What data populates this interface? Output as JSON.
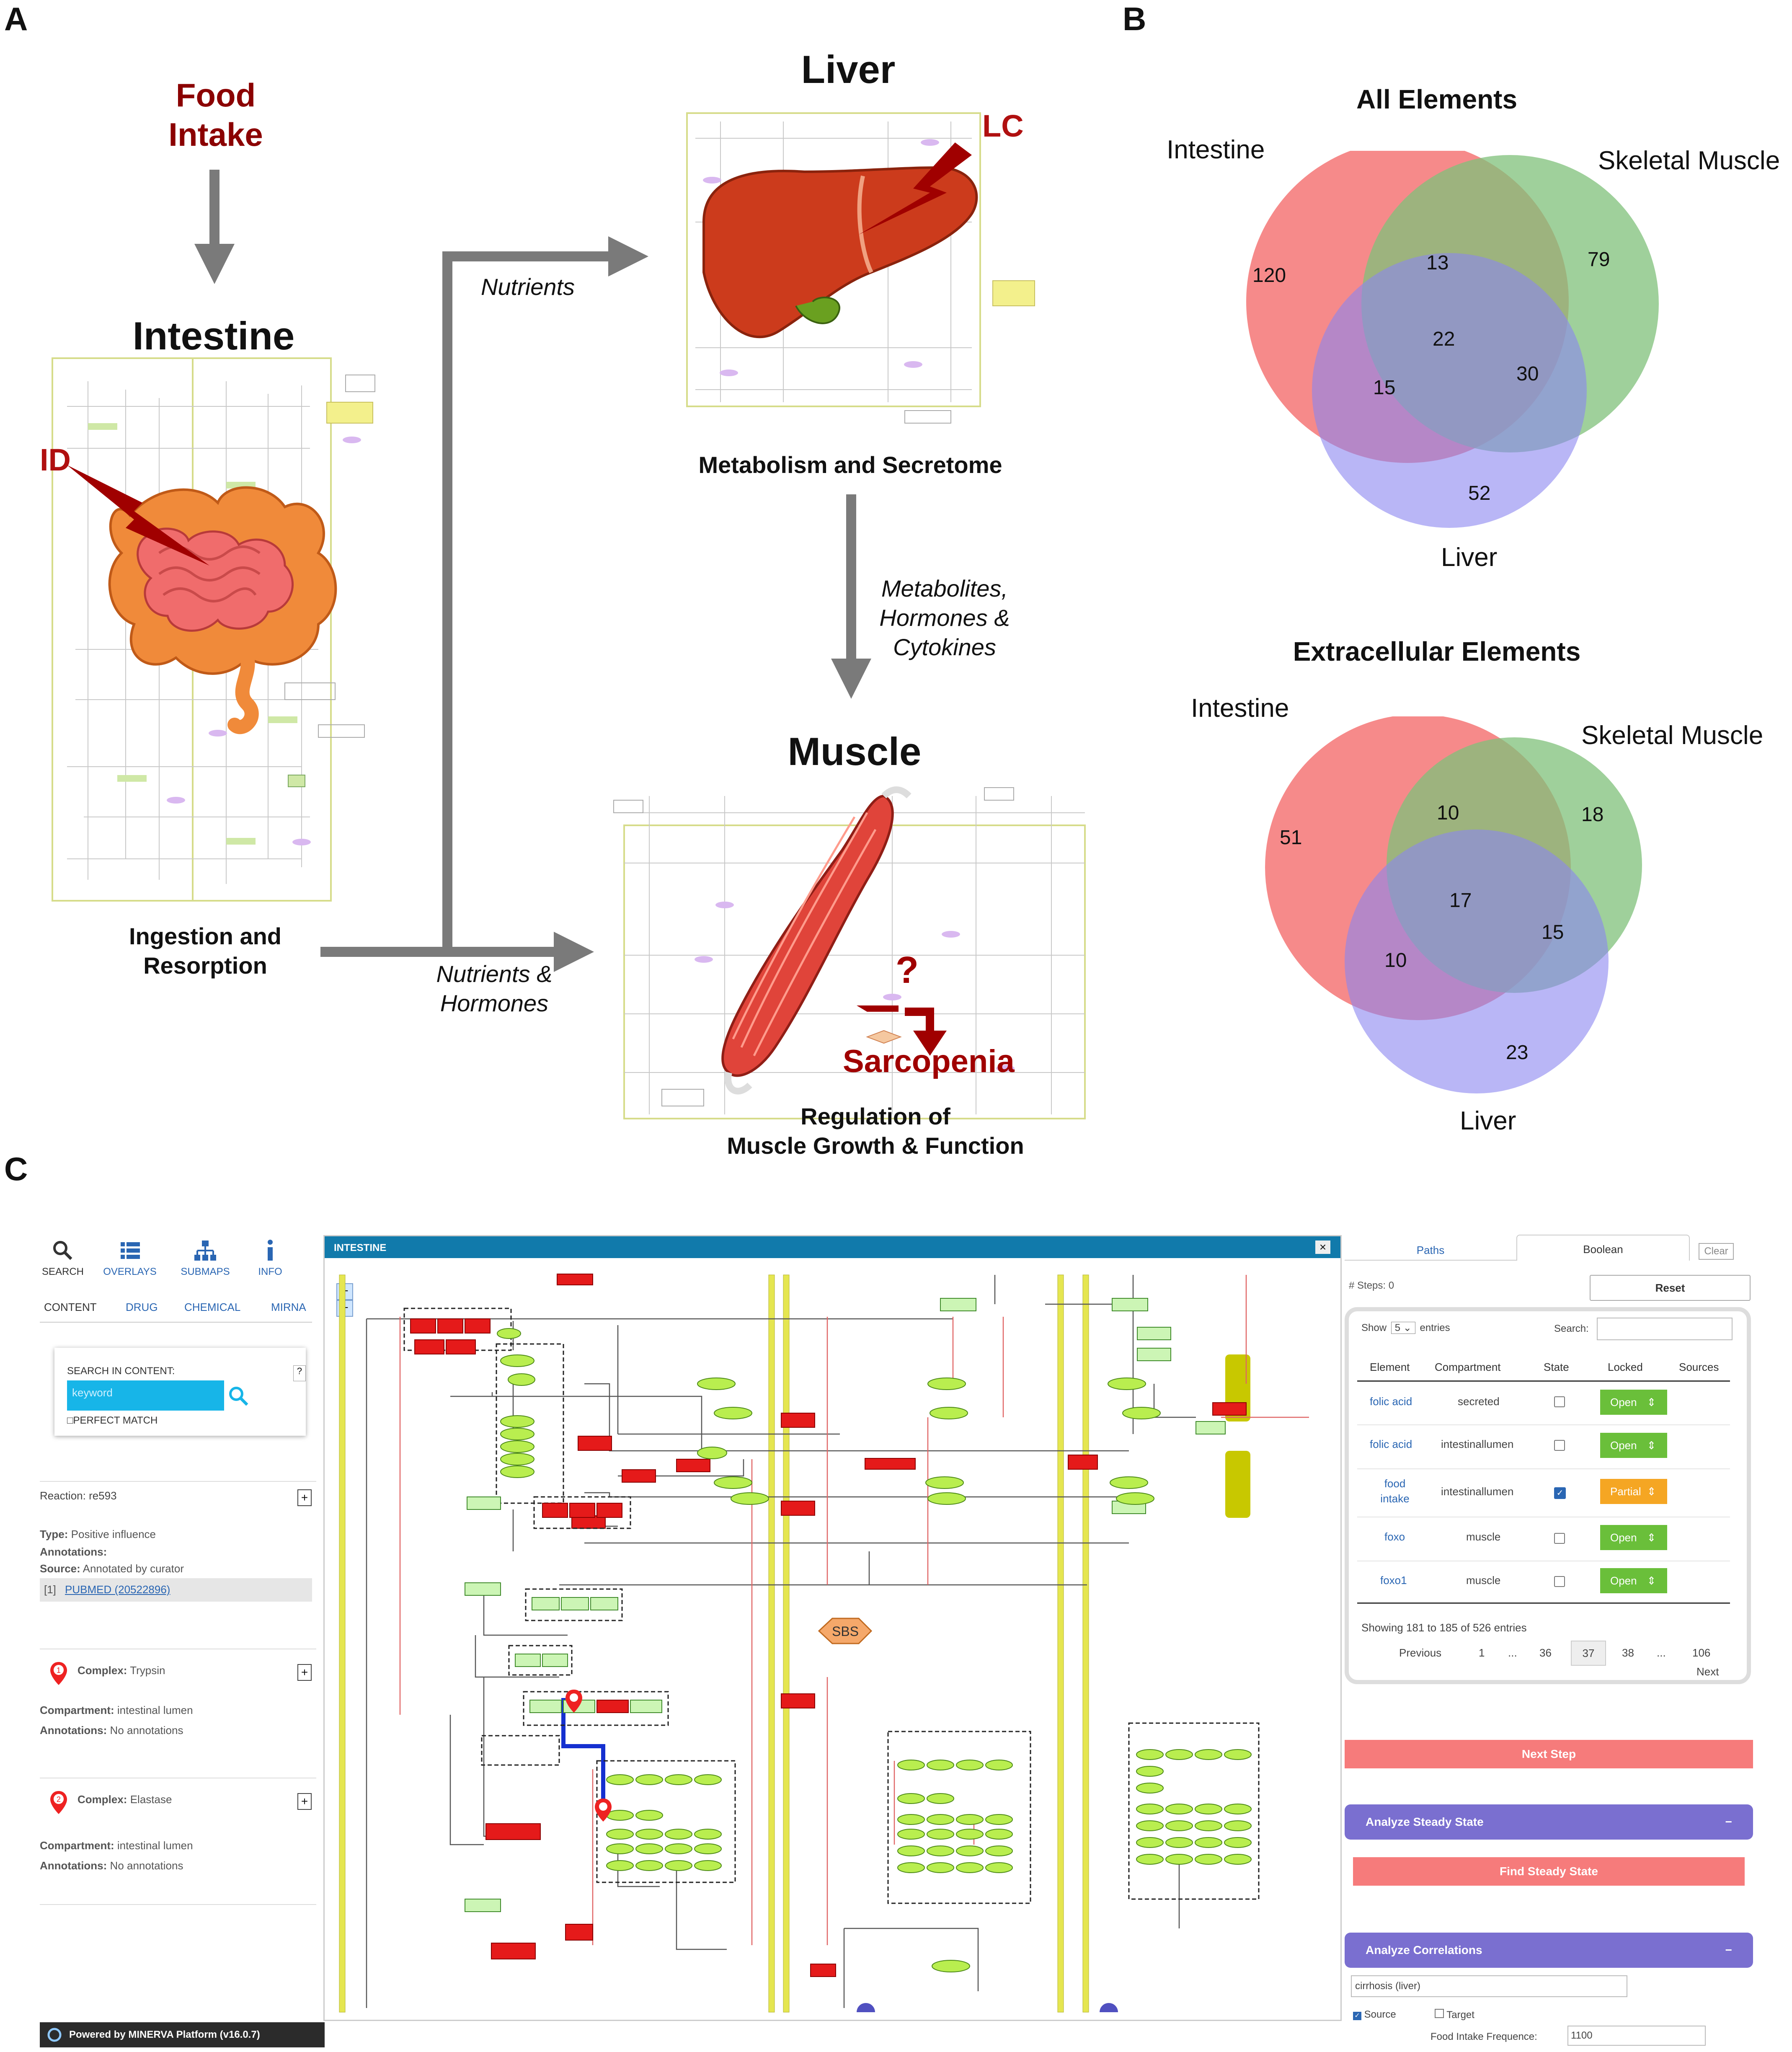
{
  "panels": {
    "a": "A",
    "b": "B",
    "c": "C"
  },
  "panel_a": {
    "food_intake": [
      "Food",
      "Intake"
    ],
    "intestine_title": "Intestine",
    "id_label": "ID",
    "ingestion": [
      "Ingestion and",
      "Resorption"
    ],
    "liver_title": "Liver",
    "lc_label": "LC",
    "nutrients": "Nutrients",
    "metabolism": "Metabolism and Secretome",
    "metabolites": [
      "Metabolites,",
      "Hormones &",
      "Cytokines"
    ],
    "nutrients_hormones": [
      "Nutrients &",
      "Hormones"
    ],
    "muscle_title": "Muscle",
    "question": "?",
    "sarcopenia": "Sarcopenia",
    "regulation": [
      "Regulation of",
      "Muscle Growth & Function"
    ]
  },
  "panel_b": {
    "all": {
      "title": "All Elements",
      "set_labels": [
        "Intestine",
        "Skeletal Muscle",
        "Liver"
      ],
      "counts": {
        "intestine_only": "120",
        "intestine_muscle": "13",
        "muscle_only": "79",
        "all_three": "22",
        "muscle_liver": "30",
        "intestine_liver": "15",
        "liver_only": "52"
      }
    },
    "extracellular": {
      "title": "Extracellular Elements",
      "set_labels": [
        "Intestine",
        "Skeletal Muscle",
        "Liver"
      ],
      "counts": {
        "intestine_only": "51",
        "intestine_muscle": "10",
        "muscle_only": "18",
        "all_three": "17",
        "muscle_liver": "15",
        "intestine_liver": "10",
        "liver_only": "23"
      }
    },
    "colors": {
      "intestine": "#f47575",
      "muscle": "#7fc07a",
      "liver": "#8b86f0"
    }
  },
  "panel_c": {
    "left": {
      "tabs": [
        "SEARCH",
        "OVERLAYS",
        "SUBMAPS",
        "INFO"
      ],
      "subtabs": [
        "CONTENT",
        "DRUG",
        "CHEMICAL",
        "MIRNA"
      ],
      "search_label": "SEARCH IN CONTENT:",
      "search_placeholder": "keyword",
      "perfect_match": "PERFECT MATCH",
      "help": "?",
      "reaction": {
        "title": "Reaction: re593",
        "type": [
          "Type:",
          "Positive influence"
        ],
        "annotations": "Annotations:",
        "source": [
          "Source:",
          "Annotated by curator"
        ],
        "ref": "[1]",
        "pubmed": "PUBMED (20522896)"
      },
      "complex1": {
        "num": "1",
        "title": [
          "Complex:",
          "Trypsin"
        ],
        "compartment": [
          "Compartment:",
          "intestinal lumen"
        ],
        "annotations": [
          "Annotations:",
          "No annotations"
        ]
      },
      "complex2": {
        "num": "2",
        "title": [
          "Complex:",
          "Elastase"
        ],
        "compartment": [
          "Compartment:",
          "intestinal lumen"
        ],
        "annotations": [
          "Annotations:",
          "No annotations"
        ]
      },
      "plus": "+",
      "powered": "Powered by MINERVA Platform (v16.0.7)"
    },
    "map": {
      "title": "INTESTINE",
      "close": "×",
      "zoom_in": "+",
      "zoom_out": "−",
      "sbs": "SBS"
    },
    "right": {
      "tabs": [
        "Paths",
        "Boolean",
        "Clear"
      ],
      "steps": "# Steps: 0",
      "reset": "Reset",
      "show": "Show",
      "show_val": "5",
      "entries": "entries",
      "search": "Search:",
      "columns": [
        "Element",
        "Compartment",
        "State",
        "Locked",
        "Sources"
      ],
      "rows": [
        {
          "element": "folic acid",
          "compartment": "secreted",
          "checked": false,
          "locked": "Open"
        },
        {
          "element": "folic acid",
          "compartment": "intestinallumen",
          "checked": false,
          "locked": "Open"
        },
        {
          "element": "food intake",
          "compartment": "intestinallumen",
          "checked": true,
          "locked": "Partial"
        },
        {
          "element": "foxo",
          "compartment": "muscle",
          "checked": false,
          "locked": "Open"
        },
        {
          "element": "foxo1",
          "compartment": "muscle",
          "checked": false,
          "locked": "Open"
        }
      ],
      "showing": "Showing 181 to 185 of 526 entries",
      "pager": [
        "Previous",
        "1",
        "...",
        "36",
        "37",
        "38",
        "...",
        "106"
      ],
      "next": "Next",
      "next_step": "Next Step",
      "steady": "Analyze Steady State",
      "find_steady": "Find Steady State",
      "correlations": "Analyze Correlations",
      "minus": "−",
      "cirrhosis": "cirrhosis (liver)",
      "source": "Source",
      "target": "Target",
      "food_freq_label": "Food Intake Frequence:",
      "food_freq_val": "1100"
    }
  }
}
